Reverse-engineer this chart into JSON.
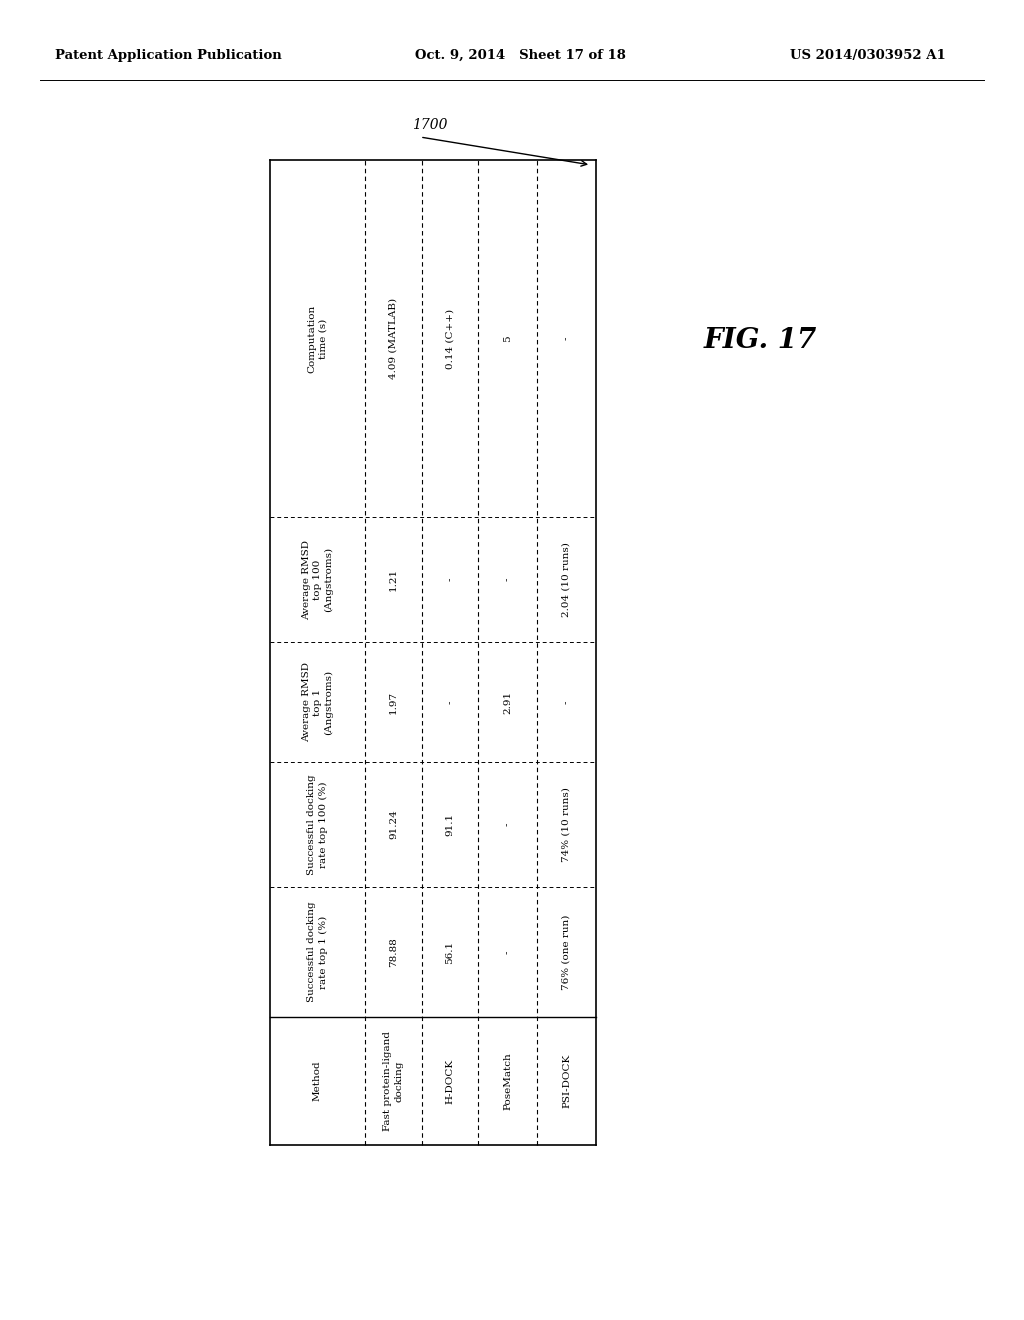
{
  "header_left": "Patent Application Publication",
  "header_mid": "Oct. 9, 2014   Sheet 17 of 18",
  "header_right": "US 2014/0303952 A1",
  "figure_label": "FIG. 17",
  "table_label": "1700",
  "columns": [
    "Method",
    "Successful docking\nrate top 1 (%)",
    "Successful docking\nrate top 100 (%)",
    "Average RMSD\ntop 1\n(Angstroms)",
    "Average RMSD\ntop 100\n(Angstroms)",
    "Computation\ntime (s)"
  ],
  "rows": [
    [
      "Fast protein-ligand\ndocking",
      "78.88",
      "91.24",
      "1.97",
      "1.21",
      "4.09 (MATLAB)"
    ],
    [
      "H-DOCK",
      "56.1",
      "91.1",
      "-",
      "-",
      "0.14 (C++)"
    ],
    [
      "PoseMatch",
      "-",
      "-",
      "2.91",
      "-",
      "5"
    ],
    [
      "PSI-DOCK",
      "76% (one run)",
      "74% (10 runs)",
      "-",
      "2.04 (10 runs)",
      "-"
    ]
  ],
  "bg_color": "#ffffff",
  "text_color": "#000000",
  "header_font_size": 9.5,
  "table_font_size": 8.0
}
